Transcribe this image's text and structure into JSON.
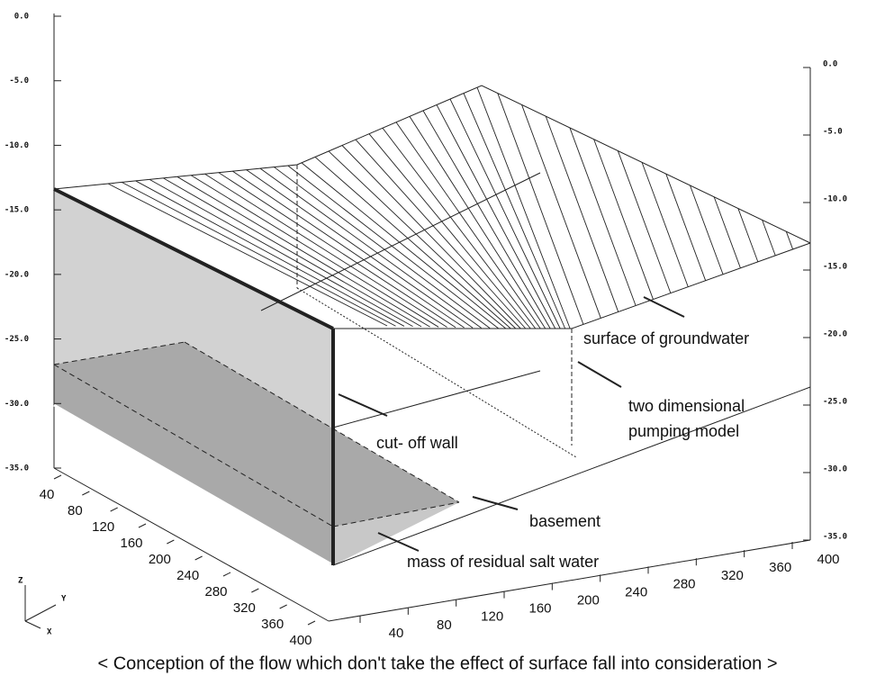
{
  "left_axis_ticks": [
    "0.0",
    "-5.0",
    "-10.0",
    "-15.0",
    "-20.0",
    "-25.0",
    "-30.0",
    "-35.0"
  ],
  "right_axis_ticks": [
    "0.0",
    "-5.0",
    "-10.0",
    "-15.0",
    "-20.0",
    "-25.0",
    "-30.0",
    "-35.0"
  ],
  "depth_axis_ticks": [
    "40",
    "80",
    "120",
    "160",
    "200",
    "240",
    "280",
    "320",
    "360",
    "400"
  ],
  "bottom_axis_ticks": [
    "40",
    "80",
    "120",
    "160",
    "200",
    "240",
    "280",
    "320",
    "360",
    "400"
  ],
  "orientation": {
    "z": "Z",
    "y": "Y",
    "x": "X"
  },
  "annotations": {
    "groundwater": "surface of groundwater",
    "pumping_1": "two dimensional",
    "pumping_2": "pumping model",
    "wall": "cut- off wall",
    "basement": "basement",
    "salt": "mass of residual salt water"
  },
  "caption": "< Conception of the flow which don't take the effect of surface fall into consideration >"
}
